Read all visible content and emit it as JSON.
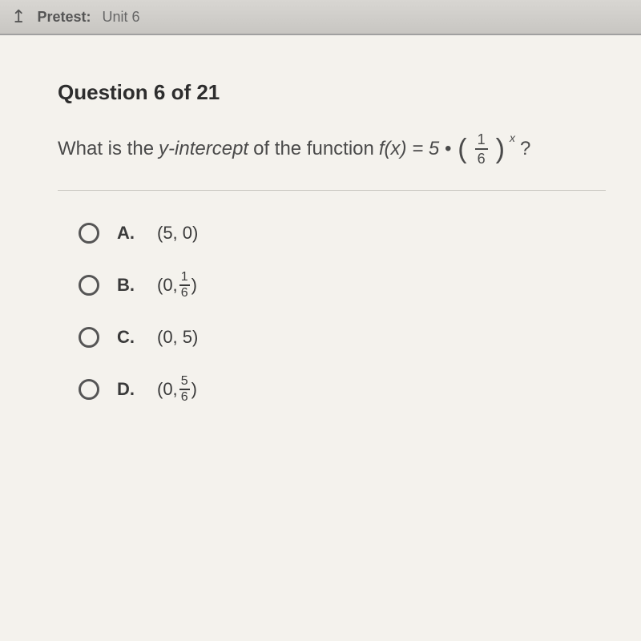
{
  "topbar": {
    "back_glyph": "↥",
    "label": "Pretest:",
    "unit": "Unit 6"
  },
  "question": {
    "title": "Question 6 of 21",
    "prompt_lead": "What is the ",
    "prompt_yint": "y-intercept",
    "prompt_mid": " of the function ",
    "fx_lhs": "f(x) = 5 •",
    "frac_num": "1",
    "frac_den": "6",
    "exponent": "x",
    "qmark": "?"
  },
  "options": [
    {
      "letter": "A.",
      "pre": "(5, 0)",
      "frac_num": "",
      "frac_den": "",
      "post": ""
    },
    {
      "letter": "B.",
      "pre": "(0, ",
      "frac_num": "1",
      "frac_den": "6",
      "post": ")"
    },
    {
      "letter": "C.",
      "pre": "(0, 5)",
      "frac_num": "",
      "frac_den": "",
      "post": ""
    },
    {
      "letter": "D.",
      "pre": "(0, ",
      "frac_num": "5",
      "frac_den": "6",
      "post": ")"
    }
  ],
  "colors": {
    "page_bg": "#e8e6e0",
    "content_bg": "#f4f2ed",
    "text": "#3a3a3a",
    "muted": "#555555",
    "divider": "#c6c4be"
  }
}
